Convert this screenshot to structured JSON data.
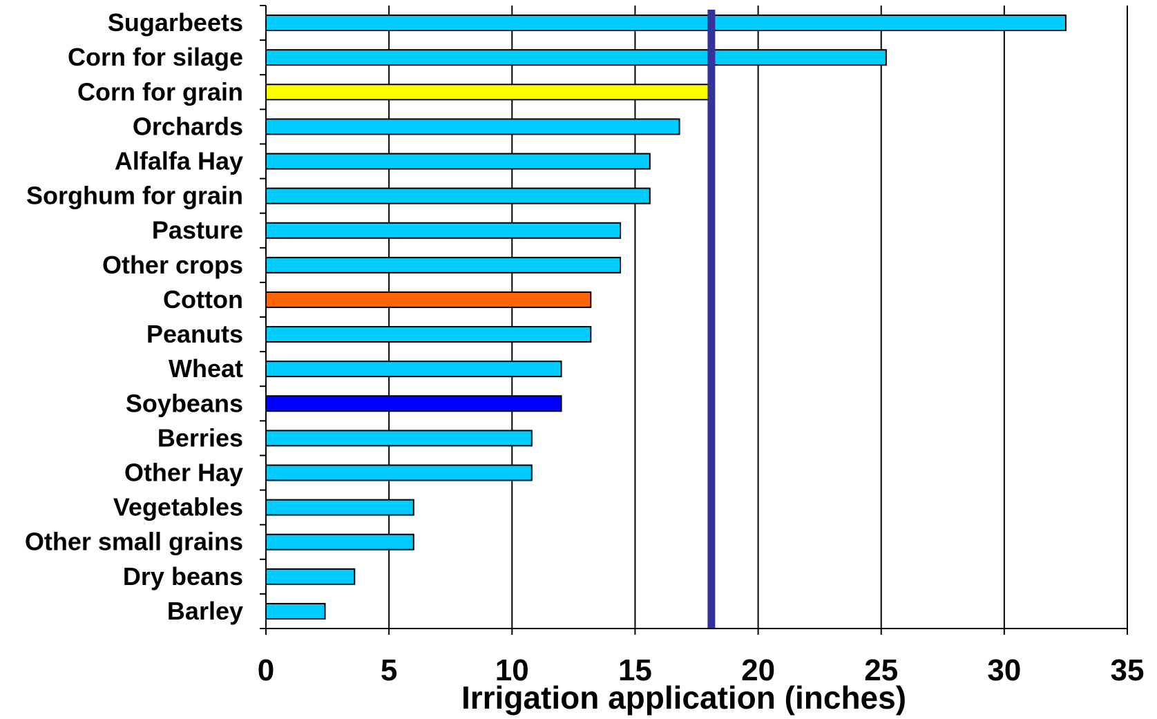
{
  "chart_data": {
    "type": "bar",
    "orientation": "horizontal",
    "categories": [
      "Sugarbeets",
      "Corn for silage",
      "Corn for grain",
      "Orchards",
      "Alfalfa Hay",
      "Sorghum for grain",
      "Pasture",
      "Other crops",
      "Cotton",
      "Peanuts",
      "Wheat",
      "Soybeans",
      "Berries",
      "Other Hay",
      "Vegetables",
      "Other small grains",
      "Dry beans",
      "Barley"
    ],
    "values": [
      32.5,
      25.2,
      18.0,
      16.8,
      15.6,
      15.6,
      14.4,
      14.4,
      13.2,
      13.2,
      12.0,
      12.0,
      10.8,
      10.8,
      6.0,
      6.0,
      3.6,
      2.4
    ],
    "bar_colors": [
      "#00CCFF",
      "#00CCFF",
      "#FFFF00",
      "#00CCFF",
      "#00CCFF",
      "#00CCFF",
      "#00CCFF",
      "#00CCFF",
      "#FF6600",
      "#00CCFF",
      "#00CCFF",
      "#0000FF",
      "#00CCFF",
      "#00CCFF",
      "#00CCFF",
      "#00CCFF",
      "#00CCFF",
      "#00CCFF"
    ],
    "reference_line": {
      "x": 18.1,
      "color": "#333399"
    },
    "xlim": [
      0,
      35
    ],
    "xticks": [
      "0",
      "5",
      "10",
      "15",
      "20",
      "25",
      "30",
      "35"
    ],
    "xlabel": "Irrigation application (inches)",
    "ylabel": "",
    "title": "",
    "grid": "vertical",
    "legend": "none"
  }
}
